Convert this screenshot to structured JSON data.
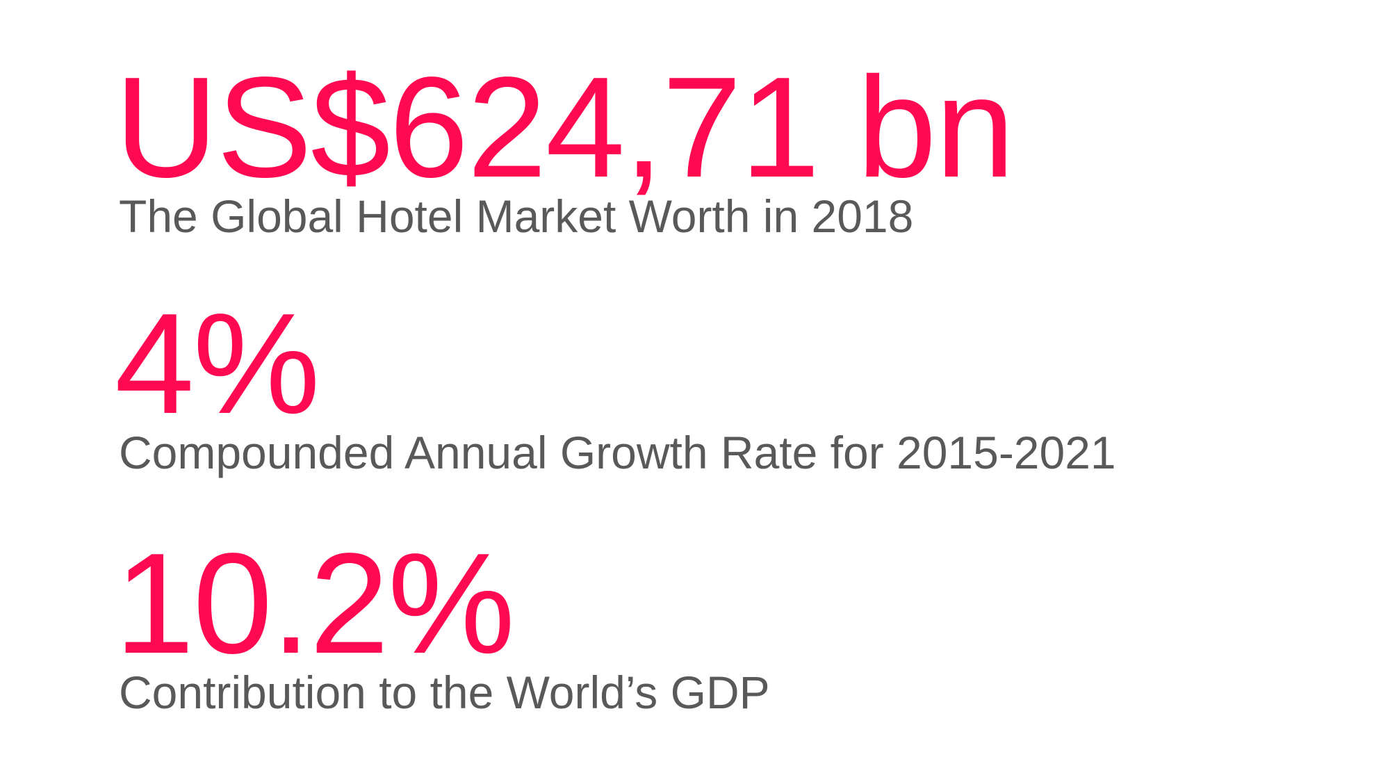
{
  "accent_color": "#ff0a50",
  "caption_color": "#595959",
  "stats": [
    {
      "value": "US$624,71 bn",
      "caption": "The Global Hotel Market Worth in 2018"
    },
    {
      "value": "4%",
      "caption": "Compounded Annual Growth Rate for 2015-2021"
    },
    {
      "value": "10.2%",
      "caption": "Contribution to the World’s GDP"
    }
  ]
}
